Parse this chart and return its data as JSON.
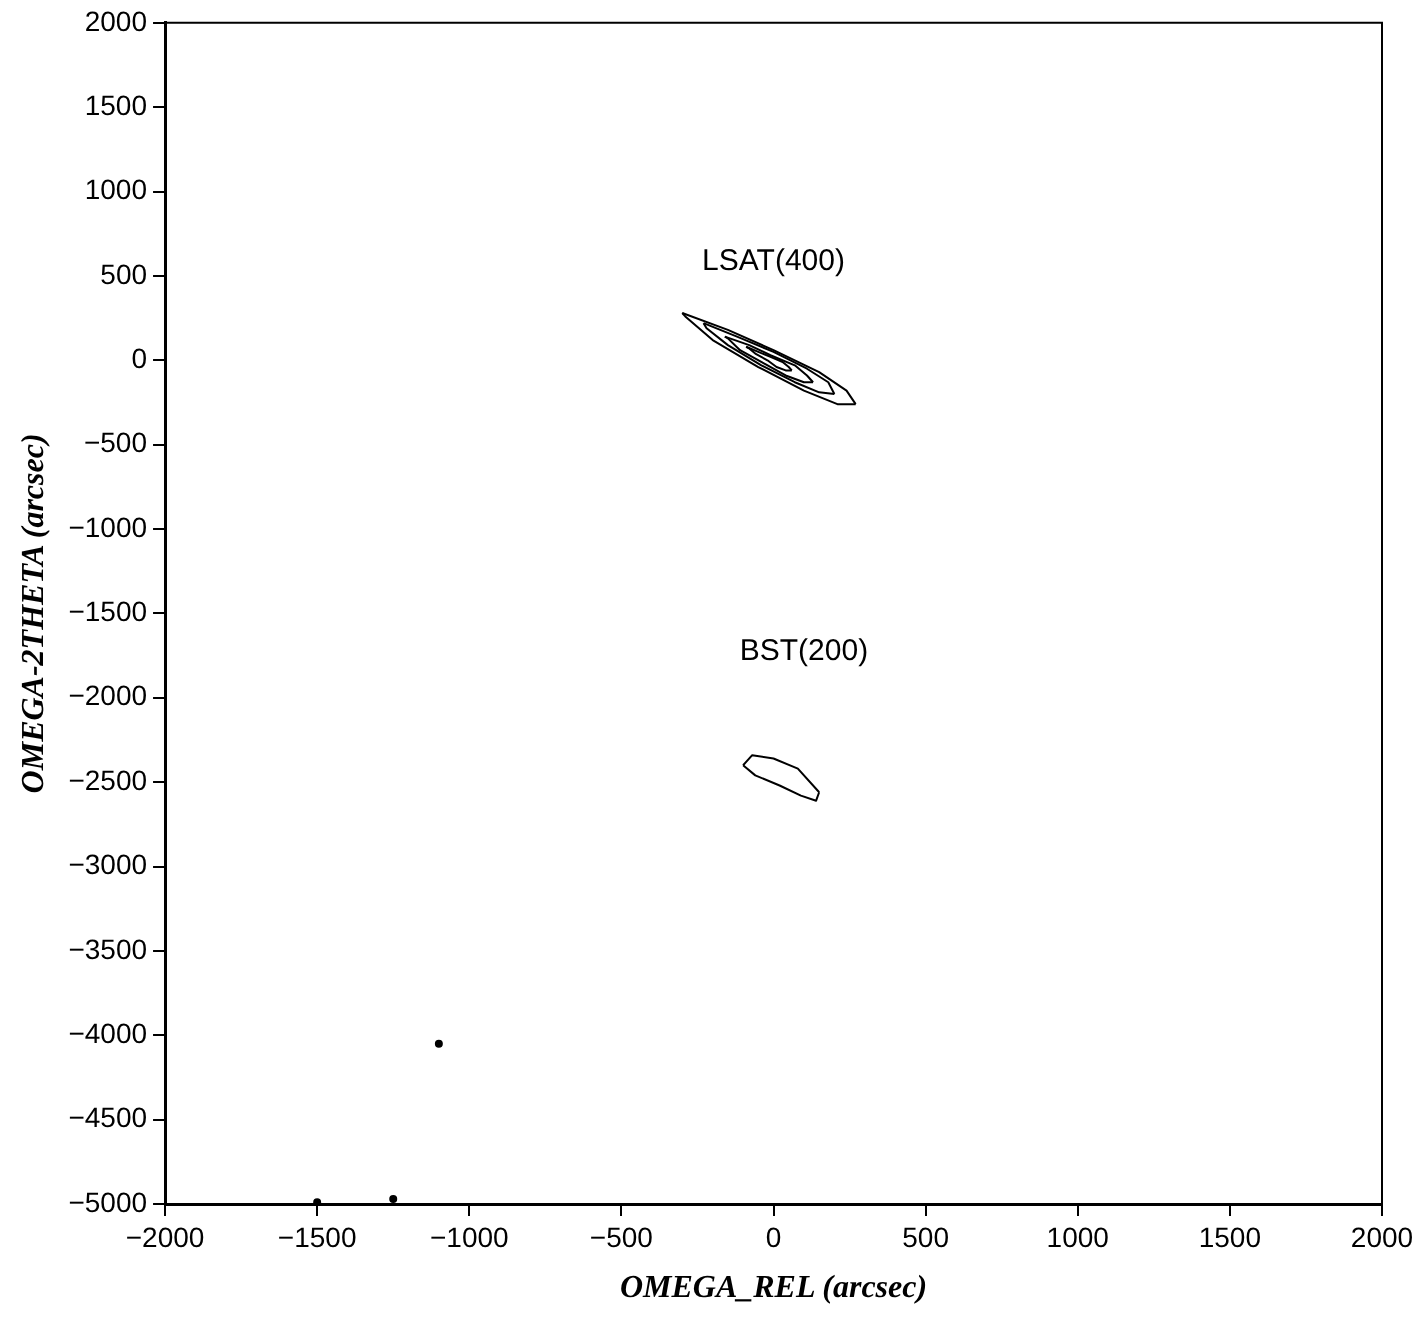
{
  "chart_data": {
    "type": "line",
    "xlabel": "OMEGA_REL (arcsec)",
    "ylabel": "OMEGA-2THETA (arcsec)",
    "xlim": [
      -2000,
      2000
    ],
    "xticks": [
      -2000,
      -1500,
      -1000,
      -500,
      0,
      500,
      1000,
      1500,
      2000
    ],
    "ylim": [
      -5000,
      2000
    ],
    "yticks": [
      -5000,
      -4500,
      -4000,
      -3500,
      -3000,
      -2500,
      -2000,
      -1500,
      -1000,
      -500,
      0,
      500,
      1000,
      1500,
      2000
    ],
    "grid": false,
    "legend": false,
    "marker": "none",
    "line_style": "solid",
    "annotations": [
      "LSAT(400)",
      "BST(200)"
    ],
    "series": [
      {
        "color": "#000000",
        "x": [
          -300,
          -150,
          0,
          150,
          240,
          270
        ],
        "values": [
          280,
          180,
          60,
          -70,
          -180,
          -260
        ]
      },
      {
        "color": "#000000",
        "x": [
          -300,
          -290,
          -200,
          -50,
          100,
          210,
          270
        ],
        "values": [
          280,
          260,
          120,
          -40,
          -180,
          -260,
          -260
        ]
      },
      {
        "color": "#000000",
        "x": [
          -230,
          -120,
          0,
          110,
          180,
          200
        ],
        "values": [
          220,
          140,
          50,
          -50,
          -130,
          -200
        ]
      },
      {
        "color": "#000000",
        "x": [
          -230,
          -220,
          -150,
          -40,
          70,
          150,
          200
        ],
        "values": [
          220,
          190,
          90,
          -30,
          -130,
          -190,
          -200
        ]
      },
      {
        "color": "#000000",
        "x": [
          -160,
          -80,
          -10,
          70,
          110,
          130
        ],
        "values": [
          140,
          90,
          30,
          -30,
          -90,
          -130
        ]
      },
      {
        "color": "#000000",
        "x": [
          -160,
          -150,
          -110,
          -30,
          40,
          100,
          130
        ],
        "values": [
          140,
          130,
          60,
          -20,
          -90,
          -130,
          -130
        ]
      },
      {
        "color": "#000000",
        "x": [
          -90,
          -50,
          -10,
          30,
          50,
          60
        ],
        "values": [
          80,
          50,
          20,
          -10,
          -40,
          -60
        ]
      },
      {
        "color": "#000000",
        "x": [
          -90,
          -80,
          -60,
          -20,
          10,
          40,
          60
        ],
        "values": [
          80,
          70,
          40,
          0,
          -40,
          -60,
          -60
        ]
      },
      {
        "color": "#000000",
        "x": [
          -100,
          -70,
          0,
          80,
          150
        ],
        "values": [
          -2400,
          -2340,
          -2360,
          -2420,
          -2560
        ]
      },
      {
        "color": "#000000",
        "x": [
          -100,
          -60,
          20,
          90,
          140,
          150
        ],
        "values": [
          -2400,
          -2460,
          -2520,
          -2580,
          -2610,
          -2560
        ]
      },
      {
        "type": "scatter",
        "marker": "circle",
        "color": "#000000",
        "x": [
          -1100,
          -1500,
          -1250
        ],
        "values": [
          -4050,
          -4990,
          -4970
        ]
      }
    ]
  }
}
